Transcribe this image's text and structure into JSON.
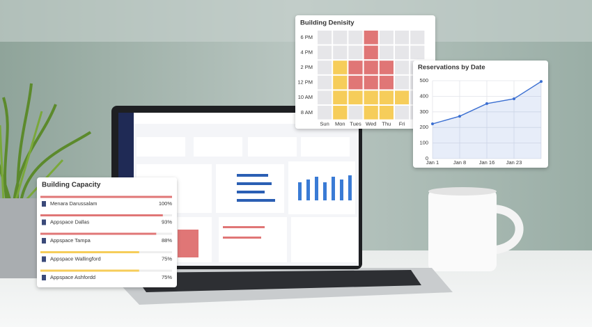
{
  "building_capacity": {
    "title": "Building Capacity",
    "names": [
      "Menara Darussalam",
      "Appspace Dallas",
      "Appspace Tampa",
      "Appspace Wallingford",
      "Appspace Ashfordd"
    ],
    "values": [
      100,
      93,
      88,
      75,
      75
    ],
    "value_labels": [
      "100%",
      "93%",
      "88%",
      "75%",
      "75%"
    ],
    "colors": [
      "#e07676",
      "#e07676",
      "#e07676",
      "#f6cd5a",
      "#f6cd5a"
    ],
    "xlim": [
      0,
      100
    ]
  },
  "building_density": {
    "type": "heatmap",
    "title": "Building Denisity",
    "columns": [
      "Sun",
      "Mon",
      "Tues",
      "Wed",
      "Thu",
      "Fri",
      null
    ],
    "rows": [
      "6 PM",
      "4 PM",
      "2 PM",
      "12 PM",
      "10 AM",
      "8 AM"
    ],
    "values": [
      [
        0,
        0,
        0,
        2,
        0,
        0,
        0
      ],
      [
        0,
        0,
        0,
        2,
        0,
        0,
        0
      ],
      [
        0,
        1,
        2,
        2,
        2,
        0,
        0
      ],
      [
        0,
        1,
        2,
        2,
        2,
        0,
        0
      ],
      [
        0,
        1,
        1,
        1,
        1,
        1,
        0
      ],
      [
        0,
        1,
        0,
        1,
        1,
        0,
        0
      ]
    ],
    "colors": [
      "#e6e6e9",
      "#f6cd5a",
      "#e07676"
    ]
  },
  "reservations_by_date": {
    "type": "line",
    "title": "Reservations by Date",
    "categories": [
      "Jan 1",
      "Jan 8",
      "Jan 16",
      "Jan 23",
      null
    ],
    "values": [
      223,
      272,
      353,
      384,
      495
    ],
    "color": "#3b6fd1",
    "ylim": [
      0,
      500
    ],
    "yticks": [
      0,
      100,
      200,
      300,
      400,
      500
    ],
    "grid": true
  }
}
